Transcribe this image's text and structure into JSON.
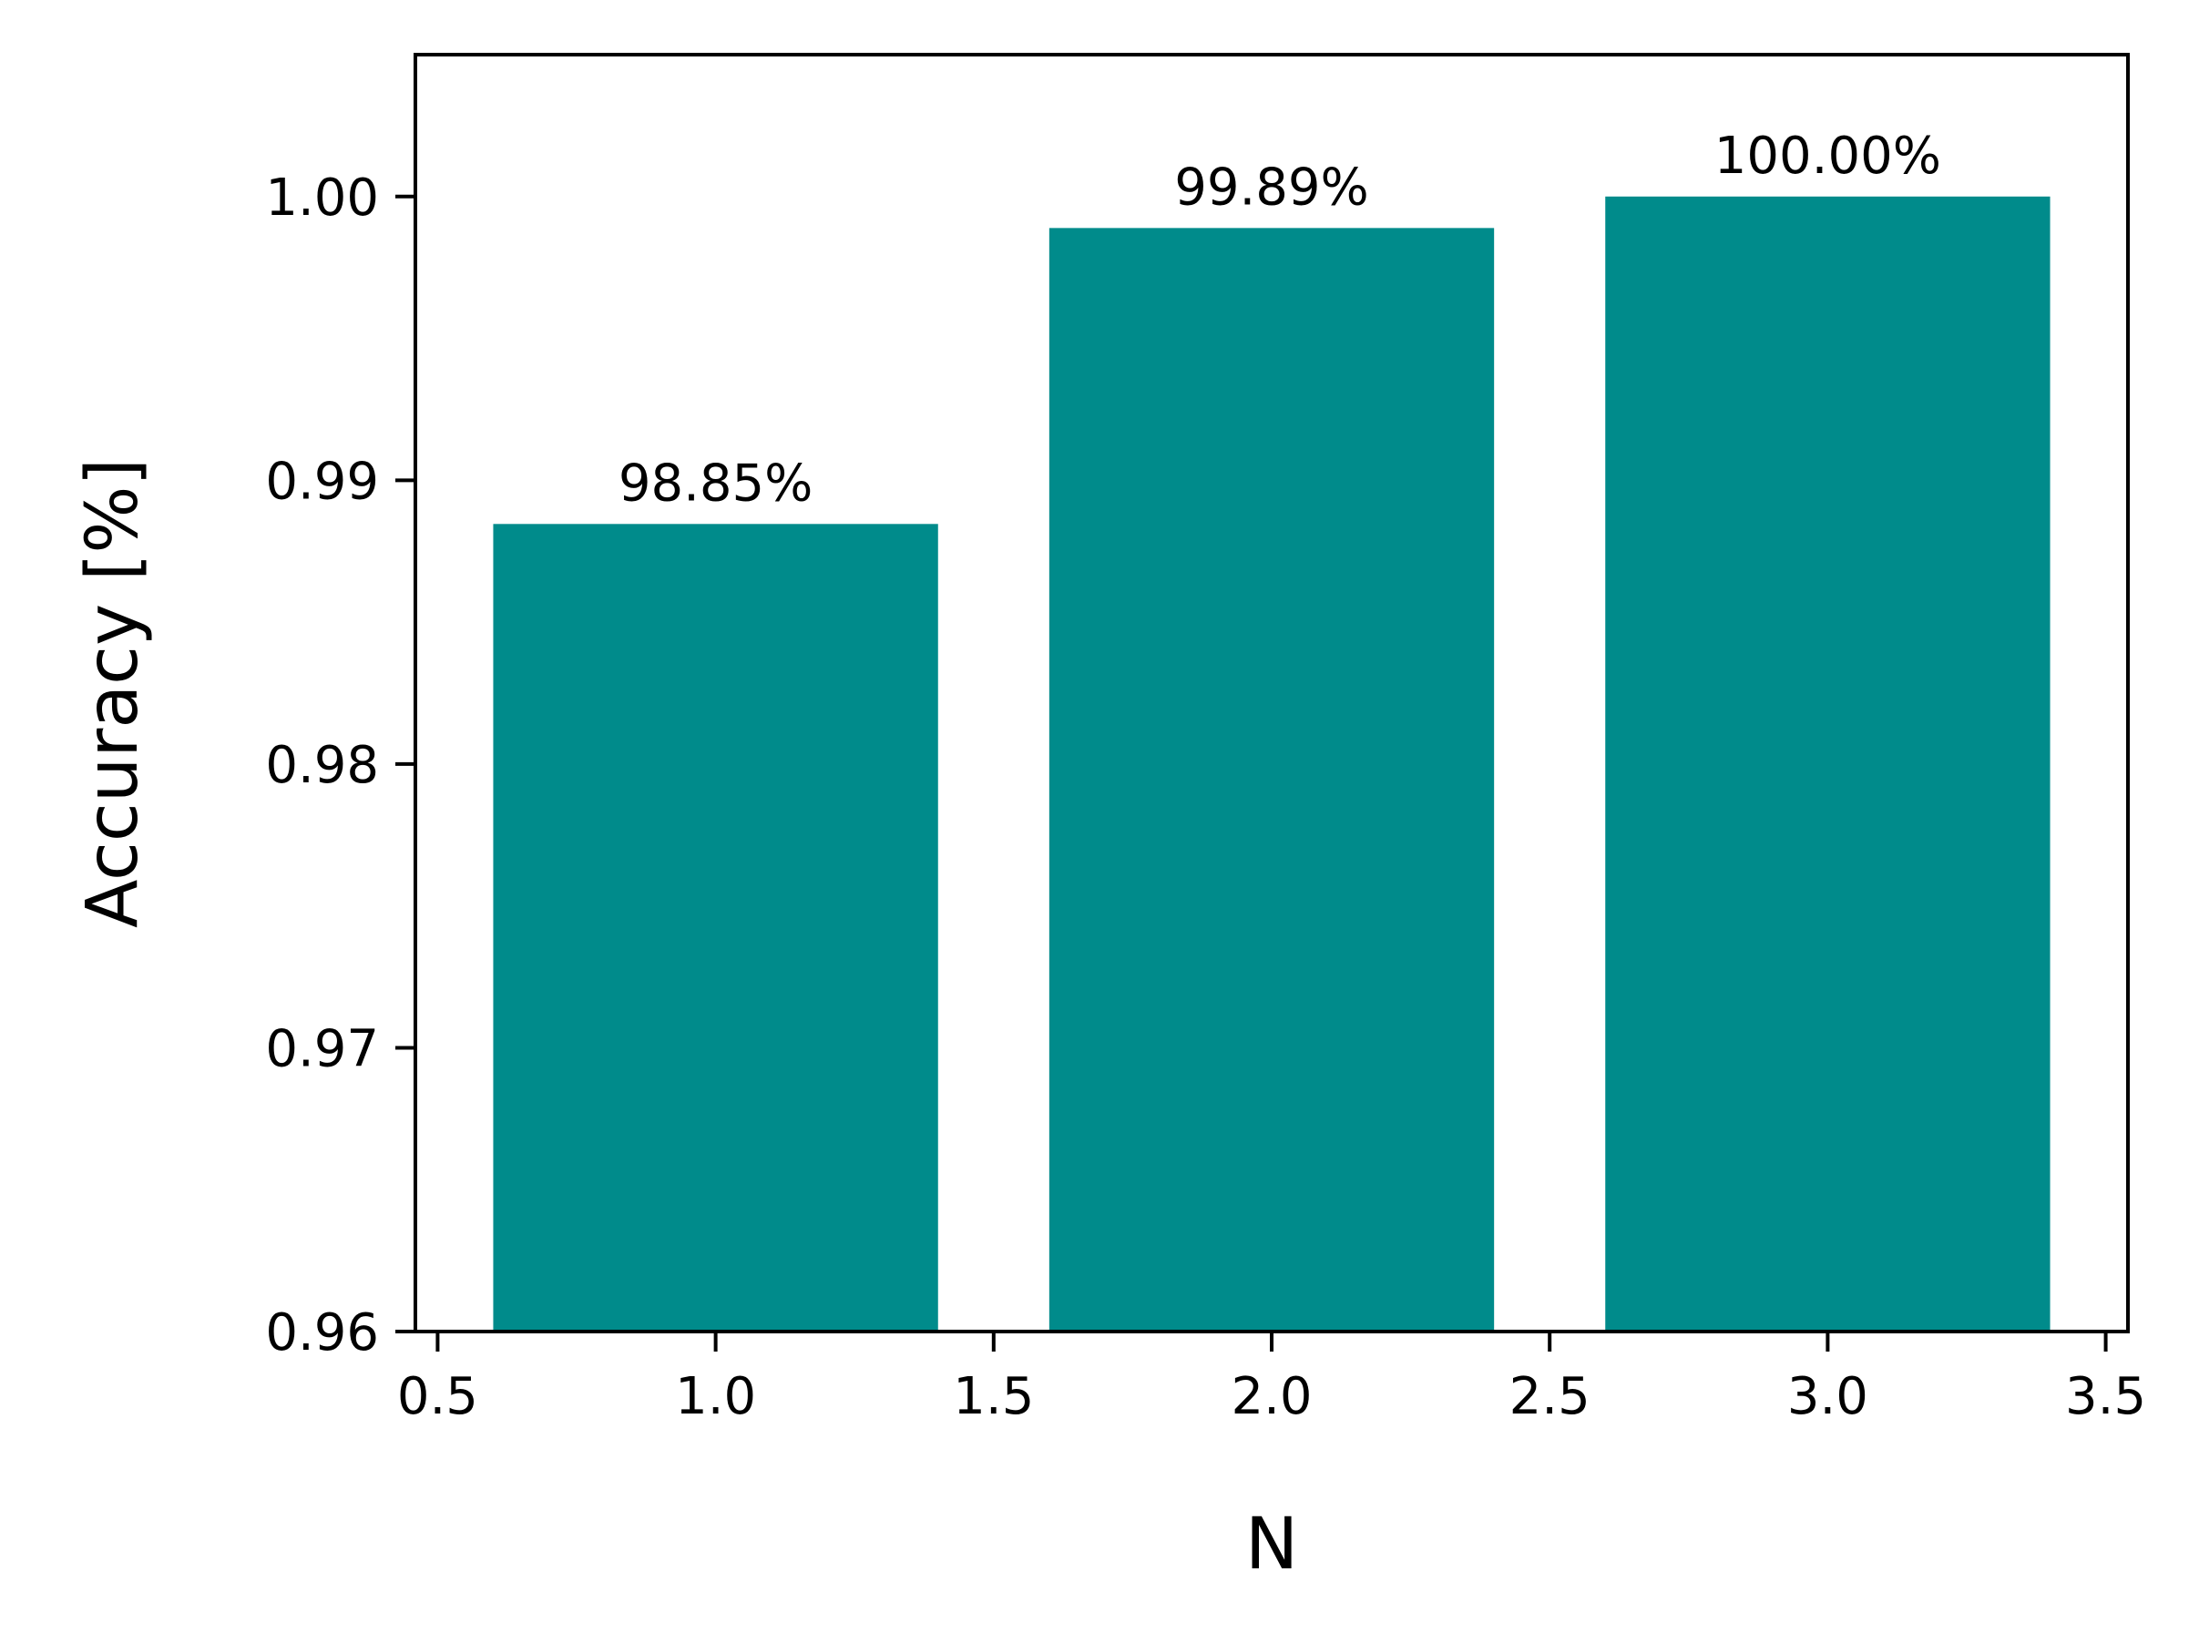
{
  "chart_data": {
    "type": "bar",
    "title": "",
    "xlabel": "N",
    "ylabel": "Accuracy [%]",
    "x": [
      1.0,
      2.0,
      3.0
    ],
    "values": [
      0.98846,
      0.99889,
      1.0
    ],
    "bar_labels": [
      "98.85%",
      "99.89%",
      "100.00%"
    ],
    "bar_width": 0.8,
    "xlim": [
      0.46,
      3.54
    ],
    "ylim": [
      0.96,
      1.005
    ],
    "x_ticks": [
      0.5,
      1.0,
      1.5,
      2.0,
      2.5,
      3.0,
      3.5
    ],
    "x_tick_labels": [
      "0.5",
      "1.0",
      "1.5",
      "2.0",
      "2.5",
      "3.0",
      "3.5"
    ],
    "y_ticks": [
      0.96,
      0.97,
      0.98,
      0.99,
      1.0
    ],
    "y_tick_labels": [
      "0.96",
      "0.97",
      "0.98",
      "0.99",
      "1.00"
    ],
    "grid": false,
    "legend": "none",
    "colors": {
      "bar": "#008b8b",
      "axis": "#000000",
      "background": "#ffffff"
    }
  }
}
